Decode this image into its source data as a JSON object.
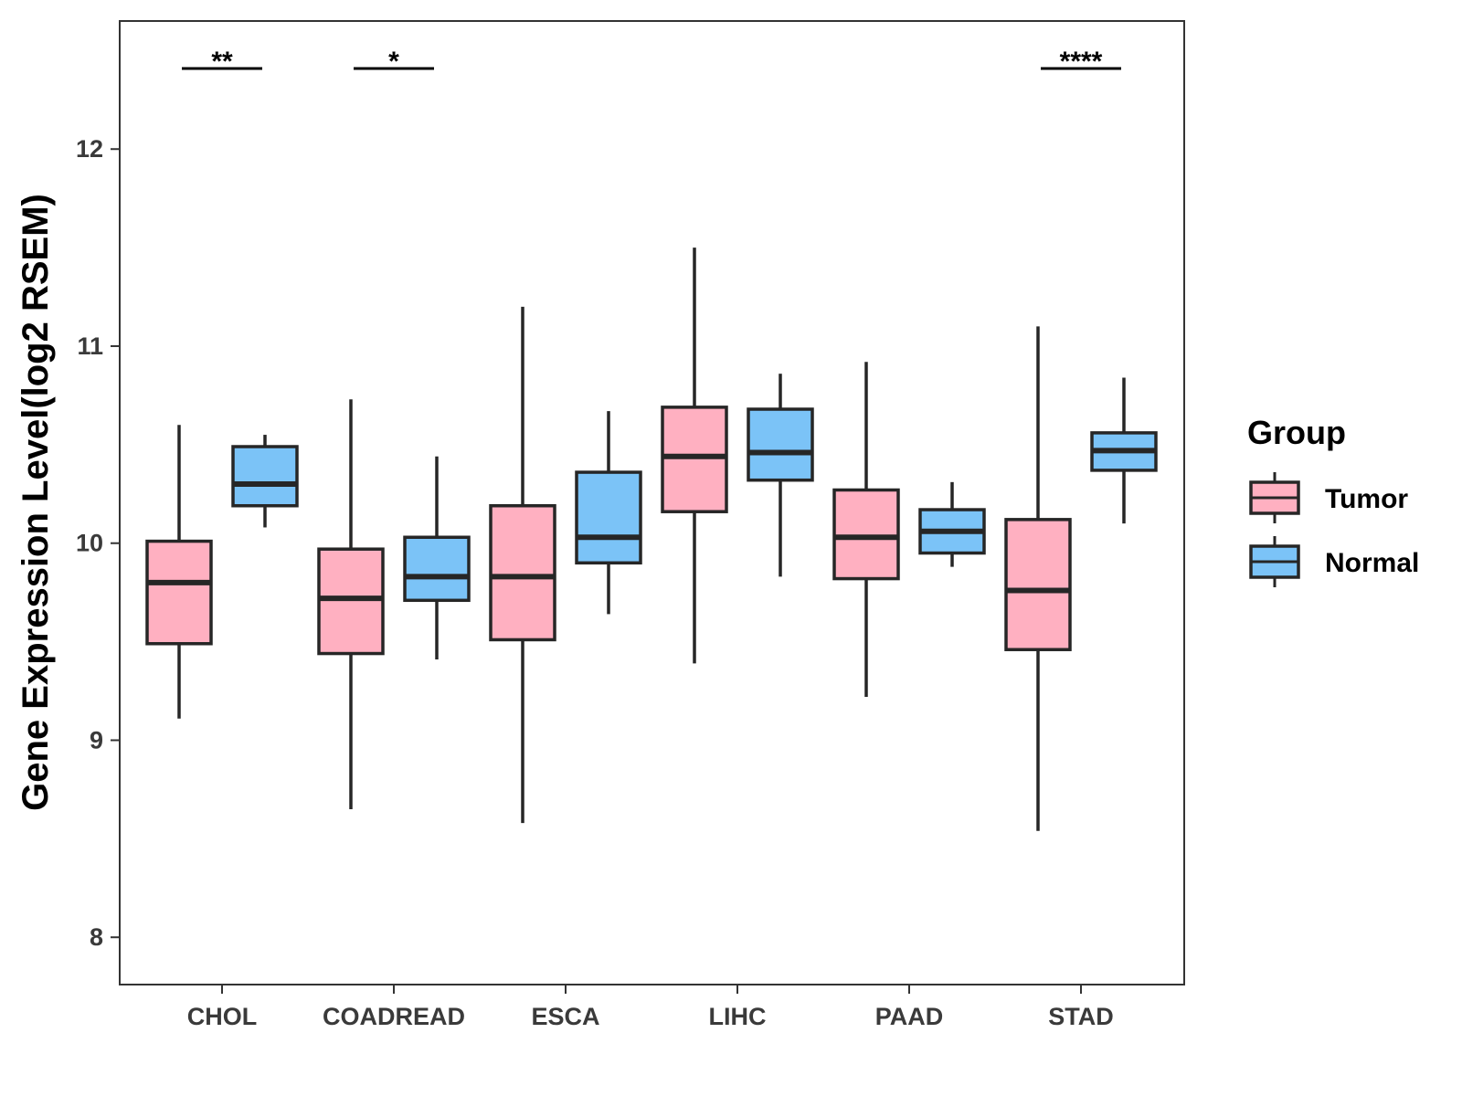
{
  "chart_data": {
    "type": "boxplot",
    "title": "",
    "xlabel": "",
    "ylabel": "Gene Expression Level(log2 RSEM)",
    "ylim": [
      7.76,
      12.65
    ],
    "yticks": [
      8,
      9,
      10,
      11,
      12
    ],
    "grid": false,
    "legend": {
      "title": "Group",
      "position": "right"
    },
    "categories": [
      "CHOL",
      "COADREAD",
      "ESCA",
      "LIHC",
      "PAAD",
      "STAD"
    ],
    "series": [
      {
        "name": "Tumor",
        "color": "#FFB0C1",
        "boxes": [
          {
            "min": 9.11,
            "q1": 9.49,
            "median": 9.8,
            "q3": 10.01,
            "max": 10.6
          },
          {
            "min": 8.65,
            "q1": 9.44,
            "median": 9.72,
            "q3": 9.97,
            "max": 10.73
          },
          {
            "min": 8.58,
            "q1": 9.51,
            "median": 9.83,
            "q3": 10.19,
            "max": 11.2
          },
          {
            "min": 9.39,
            "q1": 10.16,
            "median": 10.44,
            "q3": 10.69,
            "max": 11.5
          },
          {
            "min": 9.22,
            "q1": 9.82,
            "median": 10.03,
            "q3": 10.27,
            "max": 10.92
          },
          {
            "min": 8.54,
            "q1": 9.46,
            "median": 9.76,
            "q3": 10.12,
            "max": 11.1
          }
        ]
      },
      {
        "name": "Normal",
        "color": "#7BC3F7",
        "boxes": [
          {
            "min": 10.08,
            "q1": 10.19,
            "median": 10.3,
            "q3": 10.49,
            "max": 10.55
          },
          {
            "min": 9.41,
            "q1": 9.71,
            "median": 9.83,
            "q3": 10.03,
            "max": 10.44
          },
          {
            "min": 9.64,
            "q1": 9.9,
            "median": 10.03,
            "q3": 10.36,
            "max": 10.67
          },
          {
            "min": 9.83,
            "q1": 10.32,
            "median": 10.46,
            "q3": 10.68,
            "max": 10.86
          },
          {
            "min": 9.88,
            "q1": 9.95,
            "median": 10.06,
            "q3": 10.17,
            "max": 10.31
          },
          {
            "min": 10.1,
            "q1": 10.37,
            "median": 10.47,
            "q3": 10.56,
            "max": 10.84
          }
        ]
      }
    ],
    "significance": [
      {
        "category": "CHOL",
        "label": "**"
      },
      {
        "category": "COADREAD",
        "label": "*"
      },
      {
        "category": "STAD",
        "label": "****"
      }
    ]
  }
}
